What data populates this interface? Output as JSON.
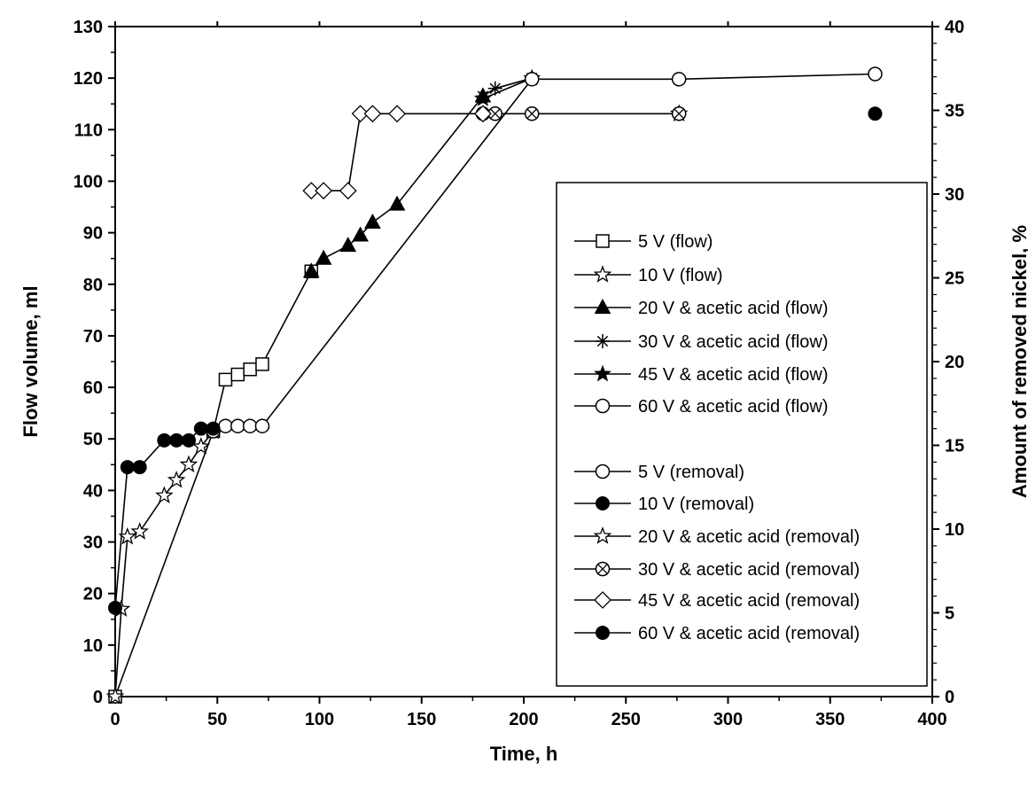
{
  "chart_data": {
    "type": "line",
    "title": "",
    "xlabel": "Time, h",
    "ylabel": "Flow volume, ml",
    "y2label": "Amount of removed nickel, %",
    "xlim": [
      0,
      400
    ],
    "ylim": [
      0,
      130
    ],
    "y2lim": [
      0,
      40
    ],
    "x_ticks": [
      "0",
      "50",
      "100",
      "150",
      "200",
      "250",
      "300",
      "350",
      "400"
    ],
    "y_ticks": [
      "0",
      "10",
      "20",
      "30",
      "40",
      "50",
      "60",
      "70",
      "80",
      "90",
      "100",
      "110",
      "120",
      "130"
    ],
    "y2_ticks": [
      "0",
      "5",
      "10",
      "15",
      "20",
      "25",
      "30",
      "35",
      "40"
    ],
    "grid": false,
    "legend_position": "right",
    "series": [
      {
        "name": "5 V (flow)",
        "axis": "left",
        "marker": "square-open",
        "x": [
          0,
          48,
          54,
          60,
          66,
          72,
          96
        ],
        "y": [
          0,
          51.5,
          61.5,
          62.5,
          63.5,
          64.5,
          82.5
        ]
      },
      {
        "name": "10 V (flow)",
        "axis": "left",
        "marker": "star-open",
        "x": [
          0,
          3,
          6,
          12,
          24,
          30,
          36,
          42,
          48
        ],
        "y": [
          0,
          17,
          31,
          32,
          39,
          42,
          45,
          48.5,
          51.5
        ]
      },
      {
        "name": "20 V & acetic acid (flow)",
        "axis": "left",
        "marker": "triangle-filled",
        "x": [
          96,
          102,
          114,
          120,
          126,
          138,
          180
        ],
        "y": [
          82.5,
          85,
          87.5,
          89.5,
          92,
          95.5,
          116.5
        ]
      },
      {
        "name": "30 V & acetic acid (flow)",
        "axis": "left",
        "marker": "asterisk",
        "x": [
          180,
          186,
          204
        ],
        "y": [
          116.5,
          118,
          120
        ]
      },
      {
        "name": "45 V & acetic acid (flow)",
        "axis": "left",
        "marker": "star-filled",
        "x": [
          180,
          204
        ],
        "y": [
          116,
          120
        ]
      },
      {
        "name": "60 V & acetic acid (flow)",
        "axis": "left",
        "marker": "circle-open",
        "x": [
          48,
          54,
          60,
          66,
          72,
          204,
          276,
          372
        ],
        "y": [
          51.5,
          52.5,
          52.5,
          52.5,
          52.5,
          119.8,
          119.8,
          120.8
        ]
      },
      {
        "name": "5 V (removal)",
        "axis": "right",
        "marker": "circle-open",
        "x": [],
        "y": []
      },
      {
        "name": "10 V (removal)",
        "axis": "right",
        "marker": "circle-filled",
        "x": [
          0,
          6,
          12,
          24,
          30,
          36,
          42,
          48
        ],
        "y": [
          5.3,
          13.7,
          13.7,
          15.3,
          15.3,
          15.3,
          16,
          16
        ]
      },
      {
        "name": "20 V & acetic acid (removal)",
        "axis": "right",
        "marker": "star-open",
        "x": [
          276
        ],
        "y": [
          34.8
        ]
      },
      {
        "name": "30 V & acetic acid (removal)",
        "axis": "right",
        "marker": "circle-cross",
        "x": [
          180,
          186,
          204,
          276
        ],
        "y": [
          34.8,
          34.8,
          34.8,
          34.8
        ]
      },
      {
        "name": "45 V & acetic acid (removal)",
        "axis": "right",
        "marker": "diamond-open",
        "x": [
          96,
          102,
          114,
          120,
          126,
          138,
          180
        ],
        "y": [
          30.2,
          30.2,
          30.2,
          34.8,
          34.8,
          34.8,
          34.8
        ]
      },
      {
        "name": "60 V & acetic acid (removal)",
        "axis": "right",
        "marker": "circle-filled",
        "x": [
          372
        ],
        "y": [
          34.8
        ]
      }
    ]
  }
}
